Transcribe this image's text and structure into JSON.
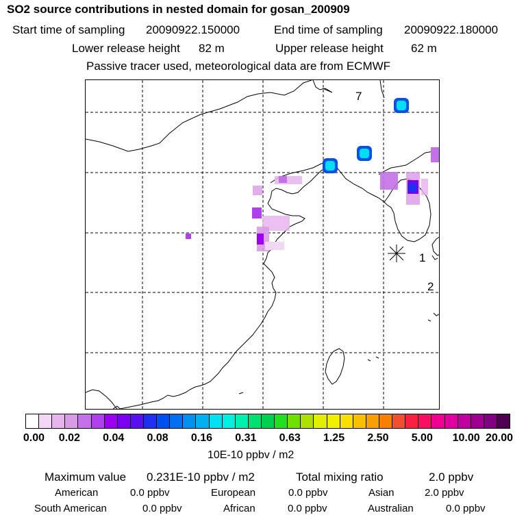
{
  "header": {
    "title": "SO2 source contributions in nested domain for gosan_200909",
    "start_label": "Start time of sampling",
    "start_value": "20090922.150000",
    "end_label": "End time of sampling",
    "end_value": "20090922.180000",
    "lower_label": "Lower release height",
    "lower_value": "82 m",
    "upper_label": "Upper release height",
    "upper_value": "62 m",
    "note": "Passive tracer used, meteorological data are from ECMWF"
  },
  "map": {
    "markers": [
      "7",
      "1",
      "2"
    ],
    "receptor_symbol": "asterisk-icon"
  },
  "legend": {
    "colors": [
      "#ffffff",
      "#f2d8f4",
      "#e8b4ee",
      "#d99ae6",
      "#c470e8",
      "#b040ee",
      "#9b00f0",
      "#7a00f0",
      "#5a10f0",
      "#2030f0",
      "#0050f0",
      "#0070f0",
      "#0090f0",
      "#00b0f0",
      "#00e0f0",
      "#00f0e0",
      "#00f0b0",
      "#00e070",
      "#00d050",
      "#20e020",
      "#70e000",
      "#b0e000",
      "#e0f000",
      "#f0f000",
      "#f8e000",
      "#f8c000",
      "#f8a000",
      "#f88000",
      "#f05030",
      "#f82040",
      "#f81060",
      "#f00090",
      "#e000a0",
      "#c000a0",
      "#a00090",
      "#800080",
      "#500050"
    ],
    "ticks": [
      "0.00",
      "0.02",
      "0.04",
      "0.08",
      "0.16",
      "0.31",
      "0.63",
      "1.25",
      "2.50",
      "5.00",
      "10.00",
      "20.00"
    ],
    "unit": "10E-10 ppbv / m2"
  },
  "summary": {
    "max_label": "Maximum value",
    "max_value": "0.231E-10 ppbv / m2",
    "total_label": "Total mixing ratio",
    "total_value": "2.0 ppbv",
    "regions": [
      {
        "name": "American",
        "value": "0.0 ppbv"
      },
      {
        "name": "European",
        "value": "0.0 ppbv"
      },
      {
        "name": "Asian",
        "value": "2.0 ppbv"
      },
      {
        "name": "South American",
        "value": "0.0 ppbv"
      },
      {
        "name": "African",
        "value": "0.0 ppbv"
      },
      {
        "name": "Australian",
        "value": "0.0 ppbv"
      }
    ]
  }
}
